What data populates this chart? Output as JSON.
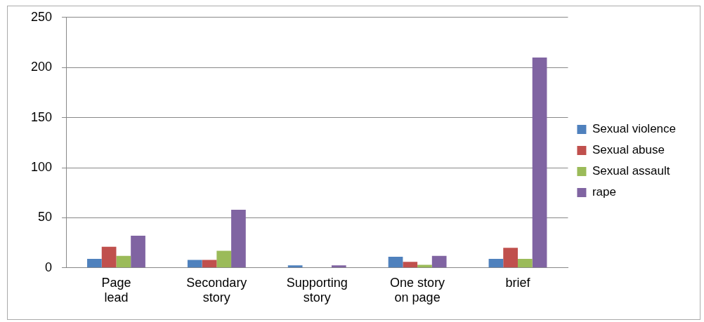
{
  "chart_data": {
    "type": "bar",
    "categories": [
      "Page lead",
      "Secondary story",
      "Supporting story",
      "One story on page",
      "brief"
    ],
    "series": [
      {
        "name": "Sexual violence",
        "color": "#4f81bd",
        "values": [
          9,
          8,
          2.5,
          11,
          9
        ]
      },
      {
        "name": "Sexual abuse",
        "color": "#c0504d",
        "values": [
          21,
          8,
          0,
          6,
          20
        ]
      },
      {
        "name": "Sexual assault",
        "color": "#9bbb59",
        "values": [
          12,
          17,
          0,
          3,
          9
        ]
      },
      {
        "name": "rape",
        "color": "#8064a2",
        "values": [
          32,
          58,
          2.5,
          12,
          210
        ]
      }
    ],
    "ylim": [
      0,
      250
    ],
    "yticks": [
      0,
      50,
      100,
      150,
      200,
      250
    ],
    "grid": "y",
    "legend": "right"
  }
}
